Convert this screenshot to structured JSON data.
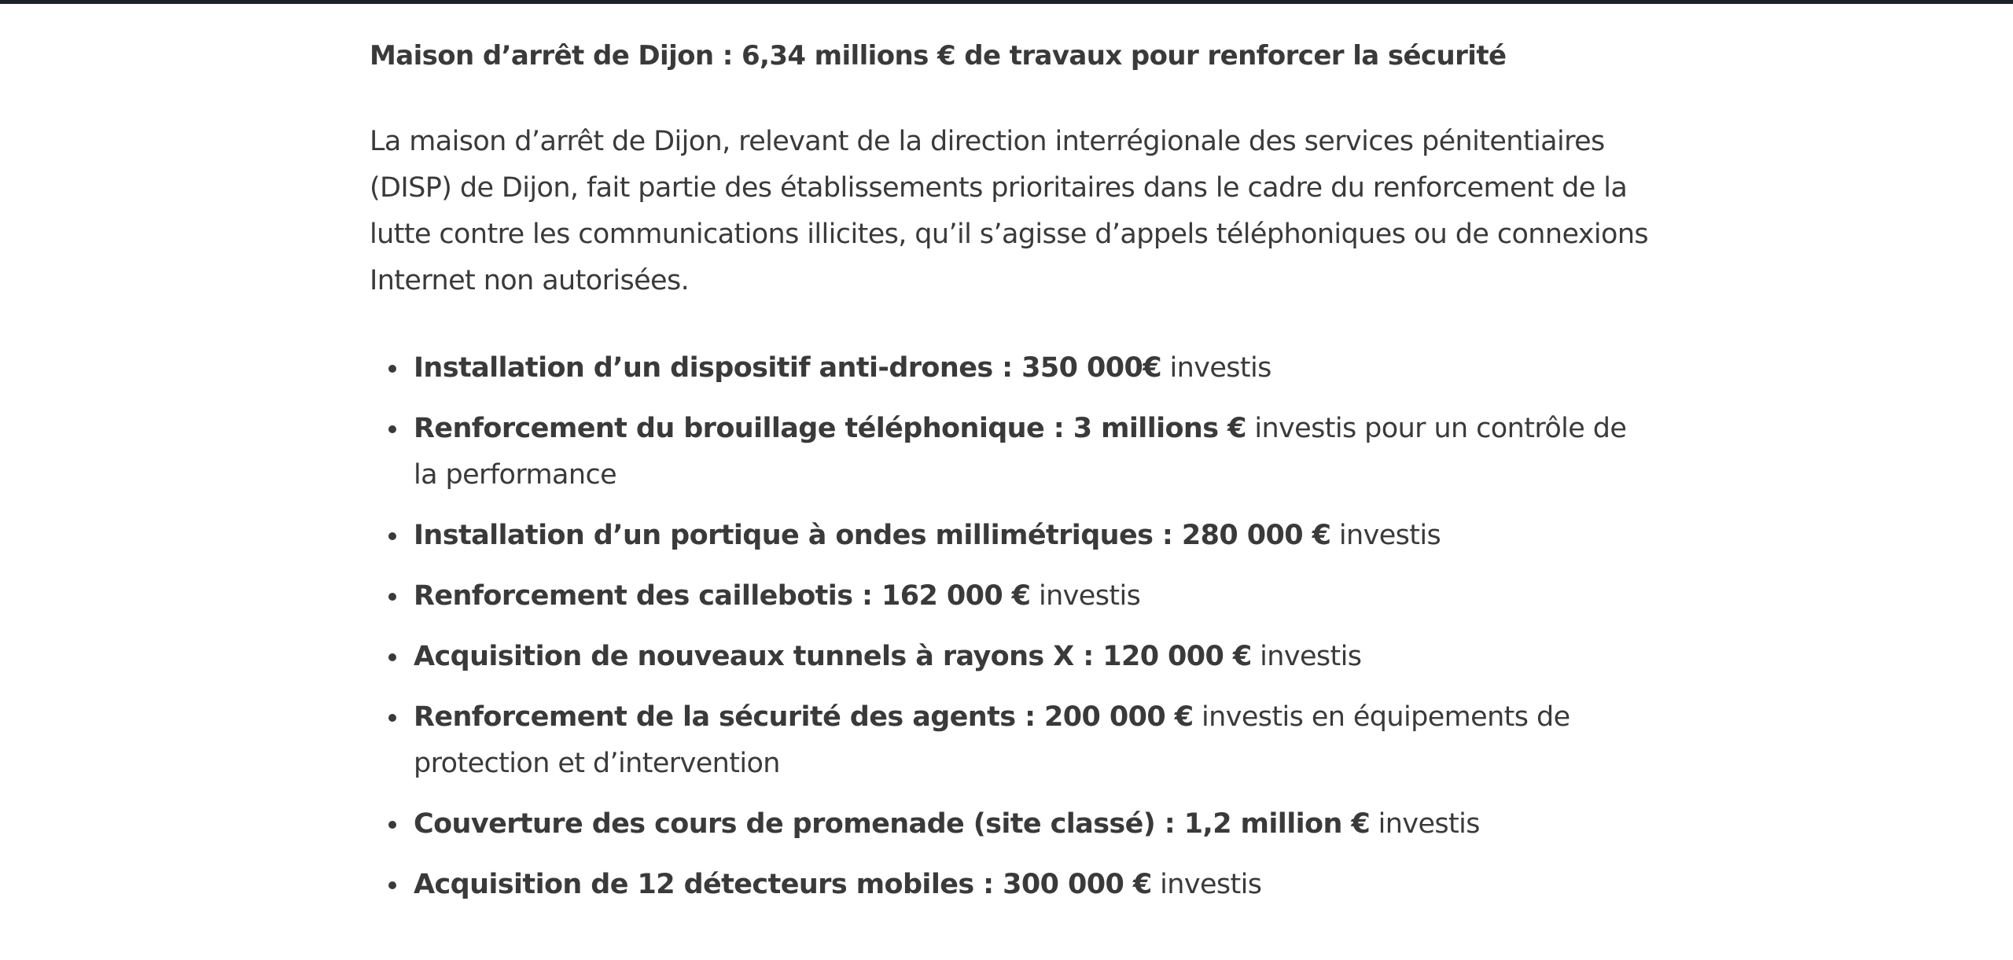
{
  "article": {
    "title": "Maison d’arrêt de Dijon : 6,34 millions € de travaux pour renforcer la sécurité",
    "intro": "La maison d’arrêt de Dijon, relevant de la direction interrégionale des services pénitentiaires (DISP) de Dijon, fait partie des établissements prioritaires dans le cadre du renforcement de la lutte contre les communications illicites, qu’il s’agisse d’appels téléphoniques ou de connexions Internet non autorisées.",
    "items": [
      {
        "bold": "Installation d’un dispositif anti-drones : 350 000€",
        "rest": " investis"
      },
      {
        "bold": "Renforcement du brouillage téléphonique : 3 millions €",
        "rest": " investis pour un contrôle de la performance"
      },
      {
        "bold": "Installation d’un portique à ondes millimétriques : 280 000 €",
        "rest": " investis"
      },
      {
        "bold": "Renforcement des caillebotis : 162 000 €",
        "rest": " investis"
      },
      {
        "bold": "Acquisition de nouveaux tunnels à rayons X : 120 000 €",
        "rest": " investis"
      },
      {
        "bold": "Renforcement de la sécurité des agents : 200 000 €",
        "rest": " investis en équipements de protection et d’intervention"
      },
      {
        "bold": "Couverture des cours de promenade (site classé) : 1,2 million €",
        "rest": " investis"
      },
      {
        "bold": "Acquisition de 12 détecteurs mobiles : 300 000 €",
        "rest": " investis"
      }
    ]
  }
}
